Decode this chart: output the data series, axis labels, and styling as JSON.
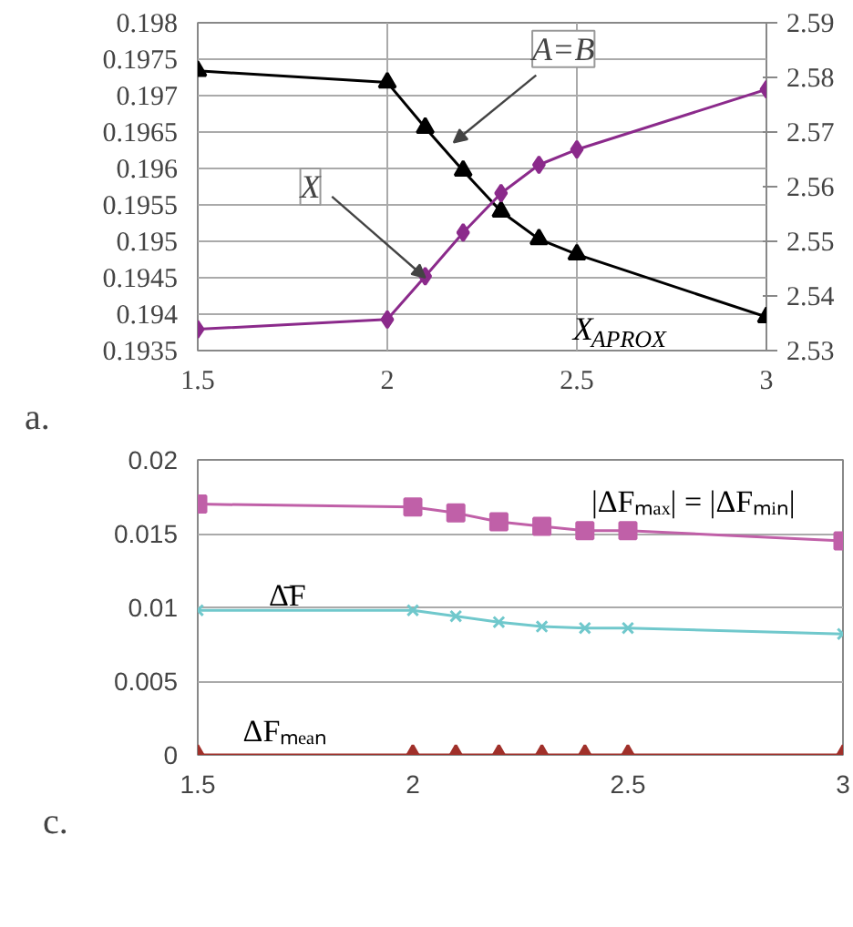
{
  "chart_data": [
    {
      "type": "line",
      "xlabel": "X$_{APROX}$",
      "x": [
        1.5,
        2,
        2.1,
        2.2,
        2.3,
        2.4,
        2.5,
        3
      ],
      "xlim": [
        1.5,
        3
      ],
      "xticks": [
        1.5,
        2,
        2.5,
        3
      ],
      "ylim": [
        0.1935,
        0.198
      ],
      "yticks": [
        0.1935,
        0.194,
        0.1945,
        0.195,
        0.1955,
        0.196,
        0.1965,
        0.197,
        0.1975,
        0.198
      ],
      "y2lim": [
        2.53,
        2.59
      ],
      "y2ticks": [
        2.53,
        2.54,
        2.55,
        2.56,
        2.57,
        2.58,
        2.59
      ],
      "grid": true,
      "series": [
        {
          "color": "#000000",
          "marker": "triangle",
          "values": [
            0.19734,
            0.19718,
            0.19656,
            0.19597,
            0.19541,
            0.19503,
            0.19482,
            0.19396
          ]
        },
        {
          "color": "#8b2a8b",
          "marker": "diamond",
          "axis": "y2",
          "values": [
            2.5339,
            2.5357,
            2.5436,
            2.5516,
            2.5588,
            2.564,
            2.5668,
            2.5778
          ]
        }
      ],
      "annotations": [
        "A=B",
        {
          "text": "X",
          "x": 2.1,
          "y": 0.1945
        },
        "a."
      ]
    },
    {
      "type": "line",
      "x": [
        1.5,
        2,
        2.1,
        2.2,
        2.3,
        2.4,
        2.5,
        3
      ],
      "xlim": [
        1.5,
        3
      ],
      "xticks": [
        1.5,
        2,
        2.5,
        3
      ],
      "ylim": [
        0,
        0.02
      ],
      "yticks": [
        0,
        0.005,
        0.01,
        0.015,
        0.02
      ],
      "grid": "y",
      "series": [
        {
          "name": "|ΔFₘₐₓ| = |ΔFₘᵢₙ|",
          "color": "#c060a8",
          "marker": "square",
          "values": [
            0.017,
            0.0168,
            0.0164,
            0.0158,
            0.0155,
            0.0152,
            0.0152,
            0.0145
          ]
        },
        {
          "name": "Δ̄F",
          "color": "#70c8cc",
          "marker": "cross",
          "values": [
            0.0098,
            0.0098,
            0.0094,
            0.009,
            0.0087,
            0.0086,
            0.0086,
            0.0082
          ]
        },
        {
          "name": "ΔFₘₑₐₙ",
          "color": "#a0302a",
          "marker": "triangle",
          "values": [
            0,
            0,
            0,
            0,
            0,
            0,
            0,
            0
          ]
        }
      ],
      "annotations": [
        "c."
      ]
    }
  ]
}
